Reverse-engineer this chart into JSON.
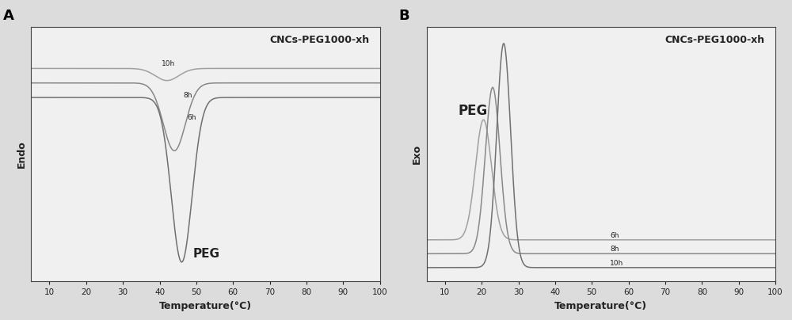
{
  "title_A": "CNCs-PEG1000-xh",
  "title_B": "CNCs-PEG1000-xh",
  "xlabel": "Temperature(°C)",
  "ylabel_A": "Endo",
  "ylabel_B": "Exo",
  "label_A": "A",
  "label_B": "B",
  "fig_facecolor": "#dcdcdc",
  "axes_facecolor": "#f0f0f0",
  "line_colors_A": [
    "#a0a0a0",
    "#888888",
    "#707070"
  ],
  "line_colors_B": [
    "#a0a0a0",
    "#888888",
    "#707070"
  ],
  "text_color": "#222222",
  "spine_color": "#444444"
}
